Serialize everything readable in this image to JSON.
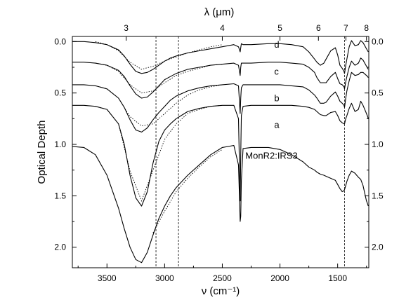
{
  "chart_data": {
    "type": "line",
    "title": "",
    "xlabel": "ν (cm⁻¹)",
    "x2label": "λ (μm)",
    "ylabel": "Optical Depth",
    "xlim": [
      3800,
      1230
    ],
    "ylim": [
      -0.05,
      2.2
    ],
    "y_inverted": true,
    "x_ticks": [
      3500,
      3000,
      2500,
      2000,
      1500
    ],
    "x_tick_labels": [
      "3500",
      "3000",
      "2500",
      "2000",
      "1500"
    ],
    "y_ticks": [
      0.0,
      0.5,
      1.0,
      1.5,
      2.0
    ],
    "y_tick_labels": [
      "0.0",
      "0.5",
      "1.0",
      "1.5",
      "2.0"
    ],
    "x2_ticks": [
      {
        "label": "3",
        "value": 3333.3
      },
      {
        "label": "4",
        "value": 2500
      },
      {
        "label": "5",
        "value": 2000
      },
      {
        "label": "6",
        "value": 1666.7
      },
      {
        "label": "7",
        "value": 1428.6
      },
      {
        "label": "8",
        "value": 1250
      }
    ],
    "vlines": [
      3075,
      2880,
      1440
    ],
    "annotations": [
      "d",
      "c",
      "b",
      "a",
      "MonR2:IRS3"
    ],
    "grid": false,
    "legend": "none",
    "series": [
      {
        "name": "d",
        "x": [
          3800,
          3700,
          3600,
          3500,
          3400,
          3350,
          3300,
          3250,
          3200,
          3150,
          3100,
          3050,
          3000,
          2950,
          2900,
          2800,
          2700,
          2600,
          2500,
          2400,
          2360,
          2345,
          2340,
          2335,
          2320,
          2250,
          2100,
          2000,
          1900,
          1800,
          1750,
          1700,
          1680,
          1650,
          1620,
          1600,
          1560,
          1520,
          1500,
          1480,
          1460,
          1445,
          1440,
          1430,
          1420,
          1400,
          1380,
          1350,
          1320,
          1300,
          1280,
          1250,
          1240,
          1235
        ],
        "y": [
          0.0,
          0.0,
          0.01,
          0.03,
          0.08,
          0.14,
          0.22,
          0.29,
          0.31,
          0.3,
          0.27,
          0.23,
          0.19,
          0.16,
          0.14,
          0.11,
          0.09,
          0.07,
          0.05,
          0.03,
          0.05,
          0.1,
          0.06,
          0.02,
          0.03,
          0.03,
          0.02,
          0.02,
          0.03,
          0.05,
          0.1,
          0.17,
          0.2,
          0.23,
          0.21,
          0.17,
          0.09,
          0.06,
          0.13,
          0.23,
          0.26,
          0.29,
          0.31,
          0.23,
          0.17,
          0.05,
          -0.01,
          0.04,
          0.03,
          -0.01,
          0.01,
          0.07,
          0.09,
          0.1
        ]
      },
      {
        "name": "c",
        "x": [
          3800,
          3700,
          3600,
          3500,
          3400,
          3350,
          3300,
          3250,
          3200,
          3150,
          3100,
          3050,
          3000,
          2950,
          2900,
          2800,
          2700,
          2600,
          2500,
          2400,
          2360,
          2345,
          2340,
          2335,
          2320,
          2250,
          2100,
          2000,
          1900,
          1800,
          1750,
          1700,
          1680,
          1650,
          1620,
          1600,
          1560,
          1520,
          1500,
          1480,
          1460,
          1445,
          1440,
          1430,
          1420,
          1400,
          1380,
          1350,
          1320,
          1300,
          1280,
          1250,
          1240,
          1235
        ],
        "y": [
          0.2,
          0.2,
          0.21,
          0.23,
          0.28,
          0.34,
          0.43,
          0.51,
          0.55,
          0.54,
          0.49,
          0.43,
          0.37,
          0.34,
          0.31,
          0.27,
          0.25,
          0.23,
          0.22,
          0.21,
          0.23,
          0.33,
          0.25,
          0.21,
          0.21,
          0.21,
          0.2,
          0.2,
          0.21,
          0.22,
          0.25,
          0.3,
          0.35,
          0.4,
          0.4,
          0.4,
          0.34,
          0.3,
          0.36,
          0.41,
          0.42,
          0.44,
          0.46,
          0.39,
          0.34,
          0.25,
          0.19,
          0.23,
          0.21,
          0.16,
          0.18,
          0.24,
          0.26,
          0.27
        ]
      },
      {
        "name": "b",
        "x": [
          3800,
          3700,
          3600,
          3500,
          3400,
          3350,
          3300,
          3250,
          3200,
          3150,
          3100,
          3050,
          3000,
          2950,
          2900,
          2800,
          2700,
          2600,
          2500,
          2400,
          2360,
          2345,
          2340,
          2335,
          2320,
          2250,
          2100,
          2000,
          1900,
          1800,
          1750,
          1700,
          1680,
          1650,
          1620,
          1600,
          1560,
          1520,
          1500,
          1480,
          1460,
          1445,
          1440,
          1430,
          1420,
          1400,
          1380,
          1350,
          1320,
          1300,
          1280,
          1250,
          1240,
          1235
        ],
        "y": [
          0.42,
          0.42,
          0.43,
          0.46,
          0.55,
          0.64,
          0.76,
          0.86,
          0.88,
          0.84,
          0.76,
          0.69,
          0.63,
          0.57,
          0.53,
          0.48,
          0.45,
          0.43,
          0.42,
          0.41,
          0.43,
          0.7,
          0.55,
          0.45,
          0.42,
          0.42,
          0.42,
          0.42,
          0.43,
          0.44,
          0.47,
          0.52,
          0.55,
          0.6,
          0.6,
          0.59,
          0.53,
          0.49,
          0.53,
          0.58,
          0.6,
          0.62,
          0.64,
          0.55,
          0.48,
          0.38,
          0.3,
          0.33,
          0.32,
          0.3,
          0.3,
          0.33,
          0.34,
          0.35
        ]
      },
      {
        "name": "a",
        "x": [
          3800,
          3700,
          3600,
          3500,
          3400,
          3350,
          3300,
          3250,
          3200,
          3150,
          3100,
          3050,
          3000,
          2950,
          2900,
          2800,
          2700,
          2600,
          2500,
          2400,
          2360,
          2345,
          2340,
          2335,
          2320,
          2250,
          2100,
          2000,
          1900,
          1800,
          1750,
          1700,
          1680,
          1650,
          1620,
          1600,
          1560,
          1520,
          1500,
          1480,
          1460,
          1445,
          1440,
          1430,
          1420,
          1400,
          1380,
          1350,
          1320,
          1300,
          1280,
          1250,
          1240,
          1235
        ],
        "y": [
          0.62,
          0.62,
          0.63,
          0.66,
          0.8,
          1.0,
          1.3,
          1.52,
          1.6,
          1.46,
          1.18,
          0.97,
          0.86,
          0.8,
          0.75,
          0.68,
          0.65,
          0.63,
          0.62,
          0.62,
          0.75,
          1.55,
          1.1,
          0.72,
          0.63,
          0.62,
          0.62,
          0.62,
          0.62,
          0.63,
          0.64,
          0.66,
          0.68,
          0.71,
          0.72,
          0.72,
          0.69,
          0.68,
          0.72,
          0.77,
          0.79,
          0.8,
          0.8,
          0.75,
          0.72,
          0.65,
          0.6,
          0.68,
          0.66,
          0.58,
          0.62,
          0.7,
          0.73,
          0.75
        ]
      },
      {
        "name": "MonR2:IRS3",
        "x": [
          3800,
          3700,
          3600,
          3500,
          3400,
          3350,
          3300,
          3250,
          3200,
          3150,
          3100,
          3050,
          3000,
          2950,
          2900,
          2800,
          2700,
          2600,
          2500,
          2400,
          2360,
          2345,
          2340,
          2335,
          2320,
          2250,
          2100,
          2000,
          1900,
          1800,
          1750,
          1700,
          1680,
          1650,
          1620,
          1600,
          1560,
          1520,
          1500,
          1480,
          1460,
          1445,
          1440,
          1430,
          1420,
          1400,
          1380,
          1350,
          1320,
          1300,
          1280,
          1250,
          1240,
          1235
        ],
        "y": [
          1.02,
          1.03,
          1.1,
          1.3,
          1.62,
          1.82,
          2.0,
          2.12,
          2.15,
          2.05,
          1.88,
          1.72,
          1.6,
          1.5,
          1.42,
          1.3,
          1.2,
          1.1,
          1.03,
          1.01,
          1.2,
          1.75,
          1.7,
          1.35,
          1.04,
          1.03,
          1.03,
          1.05,
          1.1,
          1.17,
          1.22,
          1.25,
          1.27,
          1.29,
          1.3,
          1.31,
          1.33,
          1.35,
          1.39,
          1.43,
          1.46,
          1.45,
          1.44,
          1.4,
          1.36,
          1.3,
          1.26,
          1.28,
          1.32,
          1.34,
          1.4,
          1.55,
          1.58,
          1.6
        ]
      }
    ],
    "reference_curves": [
      {
        "over": "d",
        "x": [
          3600,
          3500,
          3400,
          3300,
          3200,
          3100,
          3000,
          2900,
          2800,
          2700,
          2600,
          2500
        ],
        "y": [
          0.0,
          0.03,
          0.09,
          0.2,
          0.27,
          0.24,
          0.19,
          0.15,
          0.11,
          0.08,
          0.05,
          0.03
        ]
      },
      {
        "over": "c",
        "x": [
          3600,
          3500,
          3400,
          3300,
          3200,
          3100,
          3000,
          2900,
          2800,
          2700,
          2600,
          2500
        ],
        "y": [
          0.21,
          0.23,
          0.29,
          0.42,
          0.5,
          0.48,
          0.4,
          0.33,
          0.29,
          0.26,
          0.23,
          0.22
        ]
      },
      {
        "over": "b",
        "x": [
          3600,
          3500,
          3400,
          3300,
          3200,
          3100,
          3000,
          2900,
          2800,
          2700,
          2600,
          2500
        ],
        "y": [
          0.43,
          0.46,
          0.55,
          0.73,
          0.82,
          0.8,
          0.7,
          0.6,
          0.52,
          0.47,
          0.44,
          0.42
        ]
      },
      {
        "over": "a",
        "x": [
          3600,
          3500,
          3400,
          3300,
          3200,
          3100,
          3000,
          2900,
          2800,
          2700,
          2600,
          2500
        ],
        "y": [
          0.63,
          0.66,
          0.8,
          1.26,
          1.55,
          1.25,
          0.95,
          0.8,
          0.7,
          0.66,
          0.63,
          0.62
        ]
      },
      {
        "over": "MonR2:IRS3",
        "x": [
          3100,
          3000,
          2900,
          2800,
          2700,
          2600,
          2500
        ],
        "y": [
          1.86,
          1.65,
          1.46,
          1.33,
          1.22,
          1.12,
          1.05
        ]
      }
    ]
  }
}
